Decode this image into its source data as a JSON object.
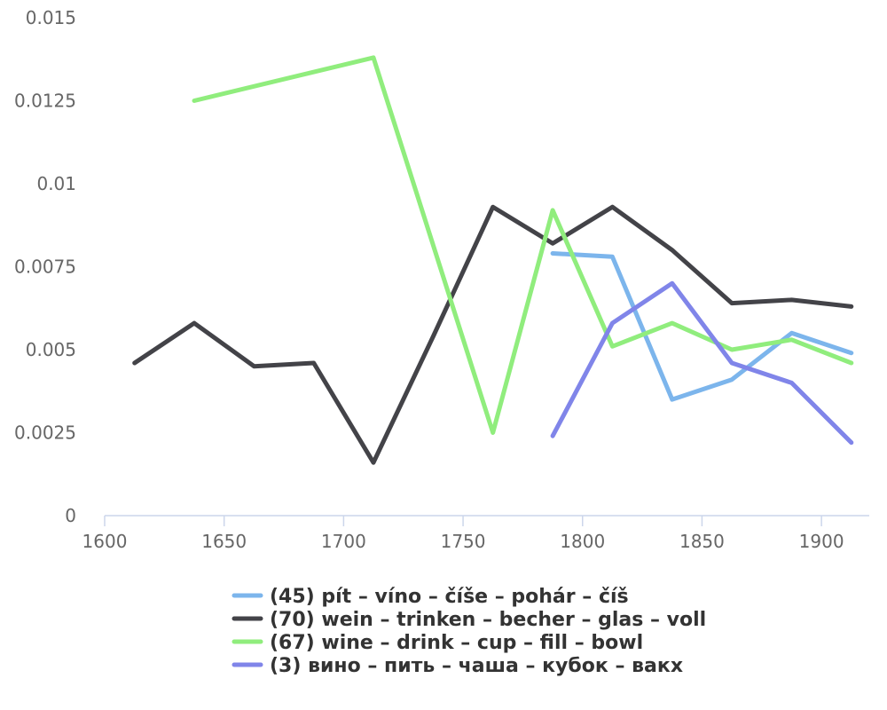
{
  "chart_data": {
    "type": "line",
    "title": "",
    "xlabel": "",
    "ylabel": "",
    "xlim": [
      1600,
      1920
    ],
    "ylim": [
      0,
      0.015
    ],
    "x_ticks": [
      "1600",
      "1650",
      "1700",
      "1750",
      "1800",
      "1850",
      "1900"
    ],
    "y_ticks": [
      "0",
      "0.0025",
      "0.005",
      "0.0075",
      "0.01",
      "0.0125",
      "0.015"
    ],
    "grid": false,
    "legend_position": "bottom",
    "series": [
      {
        "name": "(45) pít – víno – číše – pohár – číš",
        "color": "#7cb5ec",
        "points": [
          [
            1787.5,
            0.0079
          ],
          [
            1812.5,
            0.0078
          ],
          [
            1837.5,
            0.0035
          ],
          [
            1862.5,
            0.0041
          ],
          [
            1887.5,
            0.0055
          ],
          [
            1912.5,
            0.0049
          ]
        ]
      },
      {
        "name": "(70) wein – trinken – becher – glas – voll",
        "color": "#434348",
        "points": [
          [
            1612.5,
            0.0046
          ],
          [
            1637.5,
            0.0058
          ],
          [
            1662.5,
            0.0045
          ],
          [
            1687.5,
            0.0046
          ],
          [
            1712.5,
            0.0016
          ],
          [
            1737.5,
            0.0054
          ],
          [
            1762.5,
            0.0093
          ],
          [
            1787.5,
            0.0082
          ],
          [
            1812.5,
            0.0093
          ],
          [
            1837.5,
            0.008
          ],
          [
            1862.5,
            0.0064
          ],
          [
            1887.5,
            0.0065
          ],
          [
            1912.5,
            0.0063
          ]
        ]
      },
      {
        "name": "(67) wine – drink – cup – fill – bowl",
        "color": "#90ed7d",
        "points": [
          [
            1637.5,
            0.0125
          ],
          [
            1712.5,
            0.0138
          ],
          [
            1762.5,
            0.0025
          ],
          [
            1787.5,
            0.0092
          ],
          [
            1812.5,
            0.0051
          ],
          [
            1837.5,
            0.0058
          ],
          [
            1862.5,
            0.005
          ],
          [
            1887.5,
            0.0053
          ],
          [
            1912.5,
            0.0046
          ]
        ]
      },
      {
        "name": "(3) вино – пить – чаша – кубок – вакх",
        "color": "#8085e9",
        "points": [
          [
            1787.5,
            0.0024
          ],
          [
            1812.5,
            0.0058
          ],
          [
            1837.5,
            0.007
          ],
          [
            1862.5,
            0.0046
          ],
          [
            1887.5,
            0.004
          ],
          [
            1912.5,
            0.0022
          ]
        ]
      }
    ]
  }
}
